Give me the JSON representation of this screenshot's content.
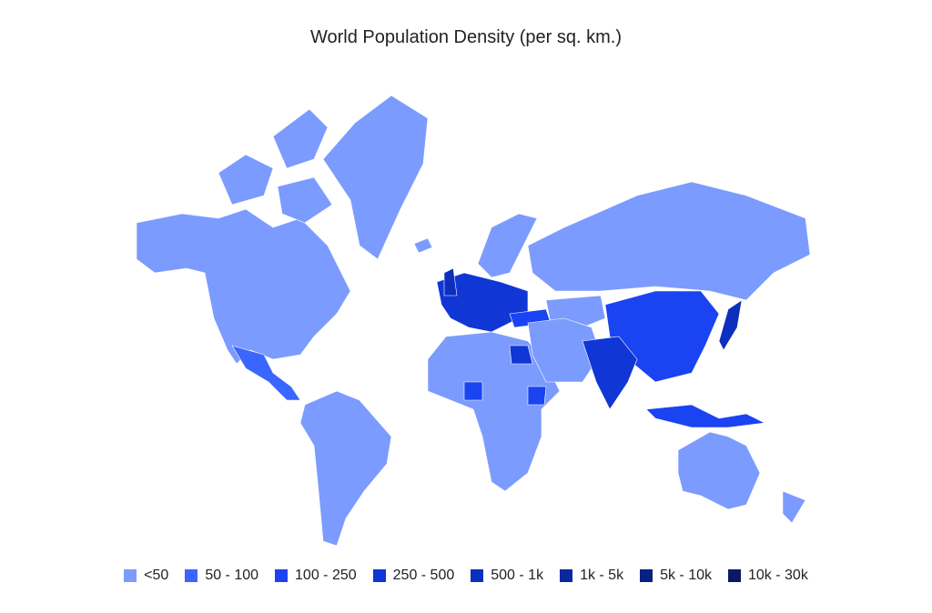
{
  "title": "World Population Density (per sq. km.)",
  "legend": [
    {
      "label": "<50",
      "color": "#7b9bff"
    },
    {
      "label": "50 - 100",
      "color": "#3a66ff"
    },
    {
      "label": "100 - 250",
      "color": "#1a43f2"
    },
    {
      "label": "250 - 500",
      "color": "#1036d6"
    },
    {
      "label": "500 - 1k",
      "color": "#0c2fbd"
    },
    {
      "label": "1k - 5k",
      "color": "#0b279d"
    },
    {
      "label": "5k - 10k",
      "color": "#0a2080"
    },
    {
      "label": "10k - 30k",
      "color": "#081a63"
    }
  ]
}
